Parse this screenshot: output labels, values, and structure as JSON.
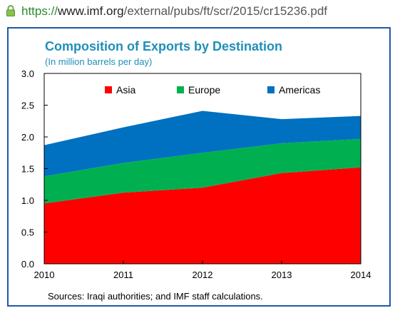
{
  "browser": {
    "url_protocol": "https://",
    "url_domain": "www.imf.org",
    "url_path": "/external/pubs/ft/scr/2015/cr15236.pdf",
    "lock_icon": "lock-icon"
  },
  "chart_data": {
    "type": "area",
    "stacked": true,
    "title": "Composition of Exports by Destination",
    "subtitle": "(In million barrels per day)",
    "xlabel": "",
    "ylabel": "",
    "x": [
      2010,
      2011,
      2012,
      2013,
      2014
    ],
    "x_tick_labels": [
      "2010",
      "2011",
      "2012",
      "2013",
      "2014"
    ],
    "ylim": [
      0,
      3
    ],
    "y_tick_labels": [
      "0.0",
      "0.5",
      "1.0",
      "1.5",
      "2.0",
      "2.5",
      "3.0"
    ],
    "grid": false,
    "legend_position": "top",
    "series": [
      {
        "name": "Asia",
        "color": "#ff0000",
        "values": [
          0.95,
          1.12,
          1.2,
          1.43,
          1.52
        ]
      },
      {
        "name": "Europe",
        "color": "#00b050",
        "values": [
          0.43,
          0.47,
          0.55,
          0.47,
          0.45
        ]
      },
      {
        "name": "Americas",
        "color": "#0070c0",
        "values": [
          0.49,
          0.56,
          0.66,
          0.38,
          0.36
        ]
      }
    ],
    "source": "Sources: Iraqi authorities; and IMF staff calculations."
  }
}
